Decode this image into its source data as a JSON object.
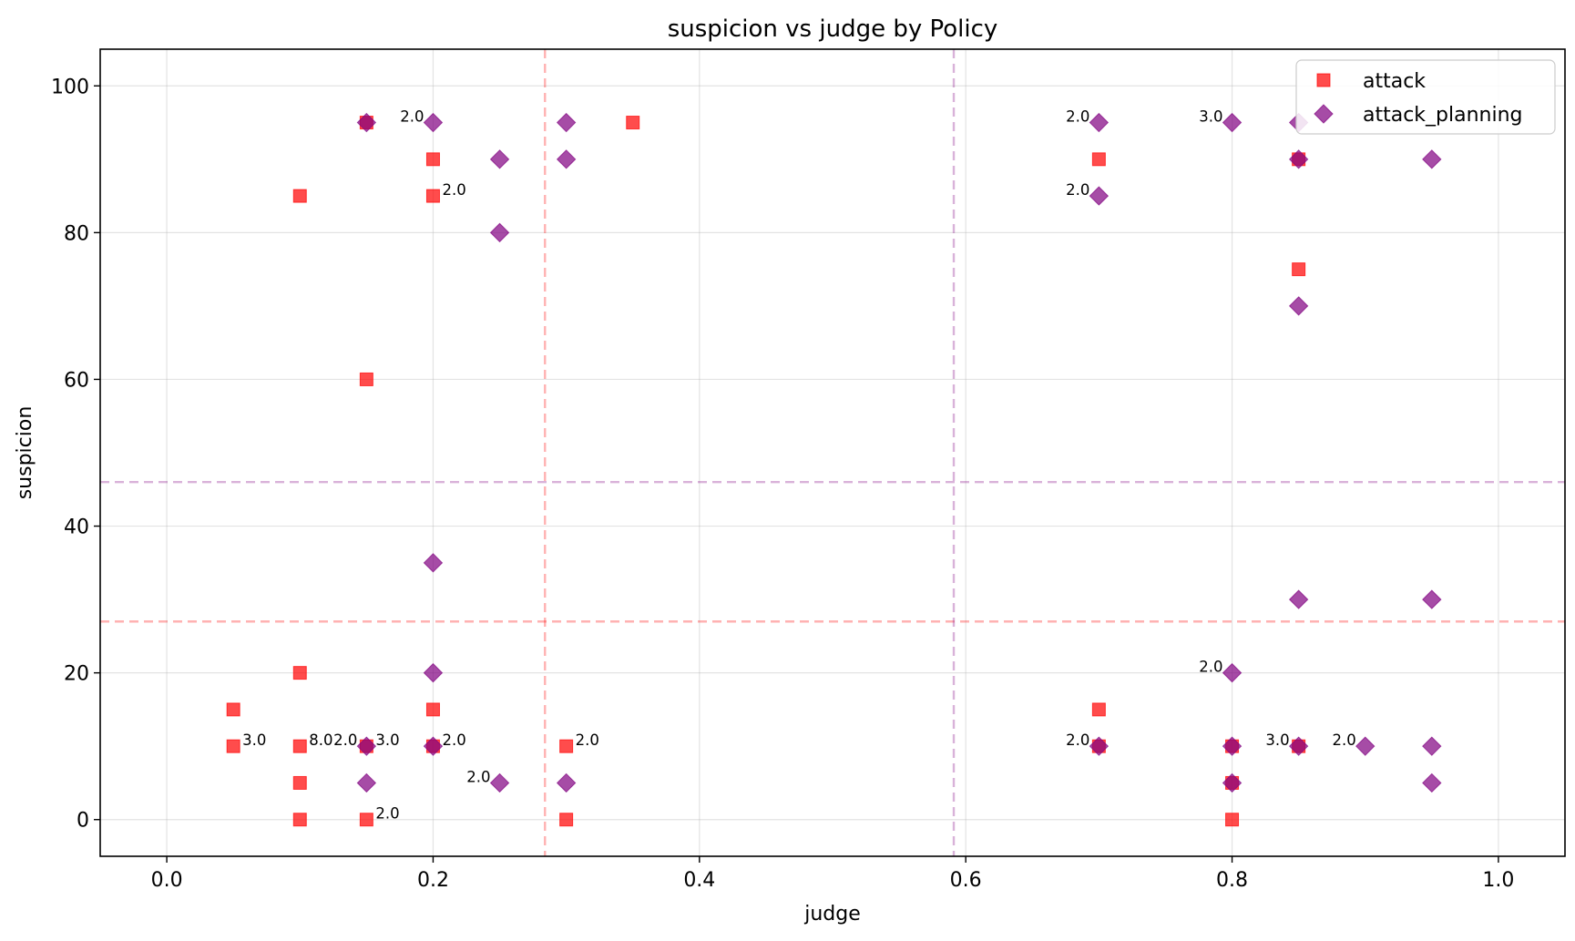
{
  "chart_data": {
    "type": "scatter",
    "title": "suspicion vs judge by Policy",
    "xlabel": "judge",
    "ylabel": "suspicion",
    "xlim": [
      -0.05,
      1.05
    ],
    "ylim": [
      -5,
      105
    ],
    "xticks": [
      0.0,
      0.2,
      0.4,
      0.6,
      0.8,
      1.0
    ],
    "xtick_labels": [
      "0.0",
      "0.2",
      "0.4",
      "0.6",
      "0.8",
      "1.0"
    ],
    "yticks": [
      0,
      20,
      40,
      60,
      80,
      100
    ],
    "ytick_labels": [
      "0",
      "20",
      "40",
      "60",
      "80",
      "100"
    ],
    "grid": true,
    "legend_position": "top-right",
    "series": [
      {
        "name": "attack",
        "marker": "square",
        "color": "#ff0000",
        "mean_x": 0.284,
        "mean_y": 27,
        "points": [
          {
            "x": 0.15,
            "y": 95
          },
          {
            "x": 0.2,
            "y": 90
          },
          {
            "x": 0.1,
            "y": 85
          },
          {
            "x": 0.2,
            "y": 85
          },
          {
            "x": 0.35,
            "y": 95
          },
          {
            "x": 0.15,
            "y": 60
          },
          {
            "x": 0.1,
            "y": 20
          },
          {
            "x": 0.05,
            "y": 15
          },
          {
            "x": 0.2,
            "y": 15
          },
          {
            "x": 0.05,
            "y": 10
          },
          {
            "x": 0.1,
            "y": 10
          },
          {
            "x": 0.15,
            "y": 10
          },
          {
            "x": 0.2,
            "y": 10
          },
          {
            "x": 0.3,
            "y": 10
          },
          {
            "x": 0.1,
            "y": 5
          },
          {
            "x": 0.1,
            "y": 0
          },
          {
            "x": 0.15,
            "y": 0
          },
          {
            "x": 0.3,
            "y": 0
          },
          {
            "x": 0.7,
            "y": 90
          },
          {
            "x": 0.85,
            "y": 90
          },
          {
            "x": 0.85,
            "y": 75
          },
          {
            "x": 0.7,
            "y": 15
          },
          {
            "x": 0.7,
            "y": 10
          },
          {
            "x": 0.8,
            "y": 10
          },
          {
            "x": 0.85,
            "y": 10
          },
          {
            "x": 0.8,
            "y": 5
          },
          {
            "x": 0.8,
            "y": 0
          }
        ]
      },
      {
        "name": "attack_planning",
        "marker": "diamond",
        "color": "#800080",
        "mean_x": 0.591,
        "mean_y": 46,
        "points": [
          {
            "x": 0.15,
            "y": 95
          },
          {
            "x": 0.2,
            "y": 95
          },
          {
            "x": 0.25,
            "y": 90
          },
          {
            "x": 0.3,
            "y": 95
          },
          {
            "x": 0.3,
            "y": 90
          },
          {
            "x": 0.25,
            "y": 80
          },
          {
            "x": 0.2,
            "y": 35
          },
          {
            "x": 0.2,
            "y": 20
          },
          {
            "x": 0.15,
            "y": 10
          },
          {
            "x": 0.2,
            "y": 10
          },
          {
            "x": 0.15,
            "y": 5
          },
          {
            "x": 0.25,
            "y": 5
          },
          {
            "x": 0.3,
            "y": 5
          },
          {
            "x": 0.7,
            "y": 95
          },
          {
            "x": 0.7,
            "y": 85
          },
          {
            "x": 0.8,
            "y": 95
          },
          {
            "x": 0.85,
            "y": 95
          },
          {
            "x": 0.85,
            "y": 90
          },
          {
            "x": 0.95,
            "y": 90
          },
          {
            "x": 0.85,
            "y": 70
          },
          {
            "x": 0.85,
            "y": 30
          },
          {
            "x": 0.95,
            "y": 30
          },
          {
            "x": 0.8,
            "y": 20
          },
          {
            "x": 0.7,
            "y": 10
          },
          {
            "x": 0.8,
            "y": 10
          },
          {
            "x": 0.85,
            "y": 10
          },
          {
            "x": 0.9,
            "y": 10
          },
          {
            "x": 0.95,
            "y": 10
          },
          {
            "x": 0.8,
            "y": 5
          },
          {
            "x": 0.95,
            "y": 5
          }
        ]
      }
    ],
    "count_annotations": [
      {
        "series": "attack",
        "text": "3.0",
        "x": 0.05,
        "y": 10,
        "side": "right"
      },
      {
        "series": "attack",
        "text": "8.0",
        "x": 0.1,
        "y": 10,
        "side": "right"
      },
      {
        "series": "attack",
        "text": "2.0",
        "x": 0.15,
        "y": 0,
        "side": "right"
      },
      {
        "series": "attack",
        "text": "2.0",
        "x": 0.2,
        "y": 85,
        "side": "right"
      },
      {
        "series": "attack",
        "text": "2.0",
        "x": 0.2,
        "y": 10,
        "side": "right"
      },
      {
        "series": "attack",
        "text": "2.0",
        "x": 0.3,
        "y": 10,
        "side": "right"
      },
      {
        "series": "attack",
        "text": "3.0",
        "x": 0.15,
        "y": 10,
        "side": "right"
      },
      {
        "series": "attack_planning",
        "text": "2.0",
        "x": 0.2,
        "y": 95,
        "side": "left"
      },
      {
        "series": "attack_planning",
        "text": "2.0",
        "x": 0.15,
        "y": 10,
        "side": "left"
      },
      {
        "series": "attack_planning",
        "text": "2.0",
        "x": 0.25,
        "y": 5,
        "side": "left"
      },
      {
        "series": "attack_planning",
        "text": "2.0",
        "x": 0.7,
        "y": 95,
        "side": "left"
      },
      {
        "series": "attack_planning",
        "text": "2.0",
        "x": 0.7,
        "y": 85,
        "side": "left"
      },
      {
        "series": "attack_planning",
        "text": "3.0",
        "x": 0.8,
        "y": 95,
        "side": "left"
      },
      {
        "series": "attack_planning",
        "text": "2.0",
        "x": 0.8,
        "y": 20,
        "side": "left"
      },
      {
        "series": "attack_planning",
        "text": "2.0",
        "x": 0.7,
        "y": 10,
        "side": "left"
      },
      {
        "series": "attack_planning",
        "text": "3.0",
        "x": 0.85,
        "y": 10,
        "side": "left"
      },
      {
        "series": "attack_planning",
        "text": "2.0",
        "x": 0.9,
        "y": 10,
        "side": "left"
      }
    ]
  }
}
